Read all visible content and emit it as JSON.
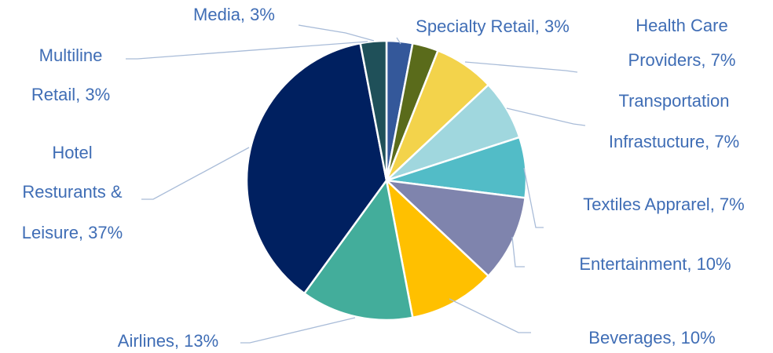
{
  "chart_data": {
    "type": "pie",
    "labels": [
      [
        "Media, 3%"
      ],
      [
        "Specialty Retail, 3%"
      ],
      [
        "Health Care",
        "Providers, 7%"
      ],
      [
        "Transportation",
        "Infrastucture, 7%"
      ],
      [
        "Textiles Apprarel, 7%"
      ],
      [
        "Entertainment, 10%"
      ],
      [
        "Beverages, 10%"
      ],
      [
        "Airlines, 13%"
      ],
      [
        "Hotel",
        "Resturants &",
        "Leisure, 37%"
      ],
      [
        "Multiline",
        "Retail, 3%"
      ]
    ],
    "values": [
      3,
      3,
      7,
      7,
      7,
      10,
      10,
      13,
      37,
      3
    ],
    "colors": [
      "#34589a",
      "#5a6b1b",
      "#f3d34b",
      "#a0d7de",
      "#52bcc7",
      "#7f84ad",
      "#ffc000",
      "#43ad9b",
      "#002060",
      "#1f5059"
    ]
  }
}
